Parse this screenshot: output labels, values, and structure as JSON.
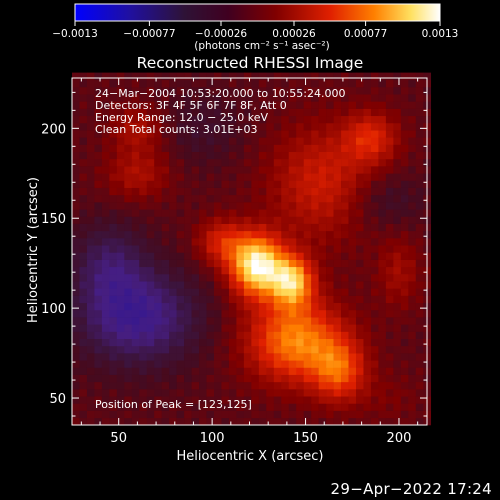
{
  "chart_data": {
    "type": "heatmap",
    "title": "Reconstructed RHESSI Image",
    "xlabel": "Heliocentric X (arcsec)",
    "ylabel": "Heliocentric Y (arcsec)",
    "xlim": [
      25,
      215
    ],
    "ylim": [
      35,
      228
    ],
    "x_ticks": [
      50,
      100,
      150,
      200
    ],
    "y_ticks": [
      50,
      100,
      150,
      200
    ],
    "colorbar": {
      "range": [
        -0.0013,
        0.0013
      ],
      "tick_values": [
        -0.0013,
        -0.00077,
        -0.00026,
        0.00026,
        0.00077,
        0.0013
      ],
      "tick_labels": [
        "−0.0013",
        "−0.00077",
        "−0.00026",
        "0.00026",
        "0.00077",
        "0.0013"
      ],
      "units_label": "(photons cm⁻² s⁻¹ asec⁻²)"
    },
    "annotations": [
      "24−Mar−2004 10:53:20.000 to 10:55:24.000",
      "Detectors: 3F 4F 5F 6F 7F 8F, Att 0",
      "Energy Range: 12.0 − 25.0 keV",
      "Clean    Total counts: 3.01E+03"
    ],
    "peak_label": "Position of Peak = [123,125]",
    "sources": [
      {
        "x": 124,
        "y": 124,
        "sx": 10,
        "sy": 12,
        "amp": 0.00125
      },
      {
        "x": 143,
        "y": 115,
        "sx": 8,
        "sy": 10,
        "amp": 0.00095
      },
      {
        "x": 145,
        "y": 82,
        "sx": 18,
        "sy": 16,
        "amp": 0.00085
      },
      {
        "x": 168,
        "y": 65,
        "sx": 10,
        "sy": 12,
        "amp": 0.0006
      },
      {
        "x": 105,
        "y": 137,
        "sx": 9,
        "sy": 9,
        "amp": 0.00045
      },
      {
        "x": 160,
        "y": 170,
        "sx": 20,
        "sy": 22,
        "amp": 0.00045
      },
      {
        "x": 60,
        "y": 175,
        "sx": 12,
        "sy": 10,
        "amp": 0.0003
      },
      {
        "x": 60,
        "y": 200,
        "sx": 10,
        "sy": 9,
        "amp": 0.0003
      },
      {
        "x": 185,
        "y": 195,
        "sx": 10,
        "sy": 10,
        "amp": 0.00045
      },
      {
        "x": 200,
        "y": 120,
        "sx": 8,
        "sy": 14,
        "amp": 0.00025
      },
      {
        "x": 195,
        "y": 50,
        "sx": 12,
        "sy": 10,
        "amp": 0.0001
      },
      {
        "x": 60,
        "y": 95,
        "sx": 22,
        "sy": 18,
        "amp": -0.0006
      },
      {
        "x": 45,
        "y": 125,
        "sx": 14,
        "sy": 16,
        "amp": -0.00035
      },
      {
        "x": 190,
        "y": 160,
        "sx": 16,
        "sy": 12,
        "amp": -0.0002
      },
      {
        "x": 95,
        "y": 200,
        "sx": 16,
        "sy": 14,
        "amp": -0.00015
      }
    ]
  },
  "footer": {
    "date": "29−Apr−2022 17:24"
  }
}
